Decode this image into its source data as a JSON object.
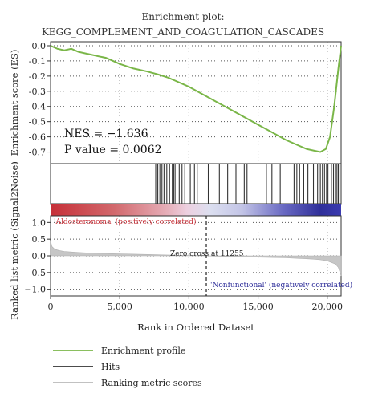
{
  "chart_data": {
    "type": "line",
    "title": "Enrichment plot:",
    "subtitle": "KEGG_COMPLEMENT_AND_COAGULATION_CASCADES",
    "xlabel": "Rank in Ordered Dataset",
    "top_panel": {
      "ylabel": "Enrichment score (ES)",
      "ylim": [
        -0.75,
        0.0
      ],
      "yticks": [
        0.0,
        -0.1,
        -0.2,
        -0.3,
        -0.4,
        -0.5,
        -0.6,
        -0.7
      ],
      "ytick_labels": [
        "0.0",
        "-0.1",
        "-0.2",
        "-0.3",
        "-0.4",
        "-0.5",
        "-0.6",
        "-0.7"
      ],
      "series": [
        {
          "name": "Enrichment profile",
          "color": "#7ab648",
          "x": [
            0,
            500,
            1000,
            1500,
            2000,
            2500,
            3000,
            3500,
            4000,
            5000,
            6000,
            7000,
            7800,
            8500,
            9000,
            9500,
            10000,
            11000,
            12000,
            13000,
            14000,
            15000,
            16000,
            17000,
            18000,
            18500,
            19000,
            19500,
            19900,
            20200,
            20500,
            20800,
            21000
          ],
          "y": [
            0.0,
            -0.02,
            -0.03,
            -0.02,
            -0.04,
            -0.05,
            -0.06,
            -0.07,
            -0.08,
            -0.12,
            -0.15,
            -0.17,
            -0.19,
            -0.21,
            -0.23,
            -0.25,
            -0.27,
            -0.32,
            -0.37,
            -0.42,
            -0.47,
            -0.52,
            -0.57,
            -0.62,
            -0.66,
            -0.68,
            -0.69,
            -0.7,
            -0.68,
            -0.6,
            -0.4,
            -0.15,
            0.0
          ]
        }
      ],
      "annotations": [
        {
          "text": "NES = −1.636"
        },
        {
          "text": "P value = 0.0062"
        }
      ]
    },
    "hits": {
      "color": "#333333",
      "positions": [
        7600,
        7750,
        7900,
        8050,
        8200,
        8400,
        8600,
        8800,
        8900,
        9000,
        9300,
        9500,
        9700,
        10100,
        10400,
        10600,
        11400,
        12200,
        12800,
        13400,
        14000,
        14200,
        15600,
        16000,
        16600,
        17600,
        17800,
        18000,
        18300,
        18600,
        19000,
        19300,
        19500,
        19650,
        19800,
        19950,
        20050,
        20300,
        20450,
        20600,
        20700,
        20800
      ]
    },
    "heatmap_bar": {
      "left_label": "'Aldosteronoma' (positively correlated)",
      "right_label": "'Nonfunctional' (negatively correlated)",
      "positive_color": "#c8323a",
      "negative_color": "#2f2f9a"
    },
    "bottom_panel": {
      "ylabel": "Ranked list metric (Signal2Noise)",
      "ylim": [
        -1.2,
        1.2
      ],
      "yticks": [
        1.0,
        0.5,
        0.0,
        -0.5,
        -1.0
      ],
      "ytick_labels": [
        "1.0",
        "0.5",
        "0.0",
        "−0.5",
        "−1.0"
      ],
      "zero_cross_label": "Zero cross at 11255",
      "zero_cross": 11255,
      "series": [
        {
          "name": "Ranking metric scores",
          "color": "#b8b8b8",
          "x": [
            0,
            100,
            300,
            600,
            1000,
            2000,
            3000,
            4000,
            5000,
            6000,
            7000,
            8000,
            9000,
            10000,
            11255,
            12000,
            13000,
            14000,
            15000,
            16000,
            17000,
            18000,
            19000,
            19500,
            20000,
            20300,
            20600,
            20800,
            21000
          ],
          "y": [
            0.45,
            0.28,
            0.2,
            0.16,
            0.13,
            0.1,
            0.08,
            0.07,
            0.06,
            0.05,
            0.04,
            0.03,
            0.02,
            0.01,
            0.0,
            -0.01,
            -0.02,
            -0.03,
            -0.04,
            -0.05,
            -0.06,
            -0.08,
            -0.1,
            -0.12,
            -0.15,
            -0.2,
            -0.25,
            -0.35,
            -0.6
          ]
        }
      ]
    },
    "xlim": [
      0,
      21000
    ],
    "xticks": [
      0,
      5000,
      10000,
      15000,
      20000
    ],
    "xtick_labels": [
      "0",
      "5,000",
      "10,000",
      "15,000",
      "20,000"
    ],
    "legend": {
      "placement": "bottom-left",
      "entries": [
        {
          "label": "Enrichment profile",
          "color": "#7ab648"
        },
        {
          "label": "Hits",
          "color": "#333333"
        },
        {
          "label": "Ranking metric scores",
          "color": "#b8b8b8"
        }
      ]
    }
  }
}
